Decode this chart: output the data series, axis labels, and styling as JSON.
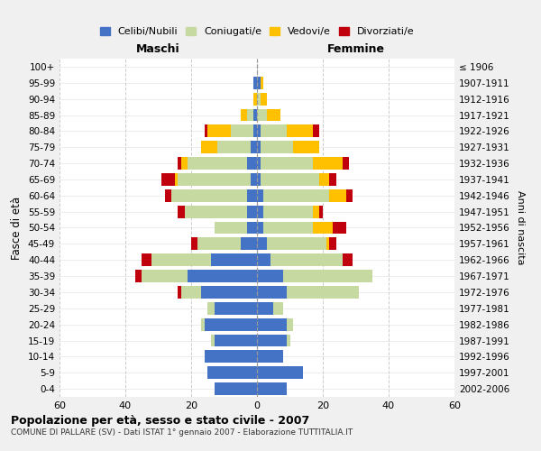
{
  "age_groups": [
    "0-4",
    "5-9",
    "10-14",
    "15-19",
    "20-24",
    "25-29",
    "30-34",
    "35-39",
    "40-44",
    "45-49",
    "50-54",
    "55-59",
    "60-64",
    "65-69",
    "70-74",
    "75-79",
    "80-84",
    "85-89",
    "90-94",
    "95-99",
    "100+"
  ],
  "birth_years": [
    "2002-2006",
    "1997-2001",
    "1992-1996",
    "1987-1991",
    "1982-1986",
    "1977-1981",
    "1972-1976",
    "1967-1971",
    "1962-1966",
    "1957-1961",
    "1952-1956",
    "1947-1951",
    "1942-1946",
    "1937-1941",
    "1932-1936",
    "1927-1931",
    "1922-1926",
    "1917-1921",
    "1912-1916",
    "1907-1911",
    "≤ 1906"
  ],
  "maschi": {
    "celibi": [
      13,
      15,
      16,
      13,
      16,
      13,
      17,
      21,
      14,
      5,
      3,
      3,
      3,
      2,
      3,
      2,
      1,
      1,
      0,
      1,
      0
    ],
    "coniugati": [
      0,
      0,
      0,
      1,
      1,
      2,
      6,
      14,
      18,
      13,
      10,
      19,
      23,
      22,
      18,
      10,
      7,
      2,
      0,
      0,
      0
    ],
    "vedovi": [
      0,
      0,
      0,
      0,
      0,
      0,
      0,
      0,
      0,
      0,
      0,
      0,
      0,
      1,
      2,
      5,
      7,
      2,
      1,
      0,
      0
    ],
    "divorziati": [
      0,
      0,
      0,
      0,
      0,
      0,
      1,
      2,
      3,
      2,
      0,
      2,
      2,
      4,
      1,
      0,
      1,
      0,
      0,
      0,
      0
    ]
  },
  "femmine": {
    "nubili": [
      9,
      14,
      8,
      9,
      9,
      5,
      9,
      8,
      4,
      3,
      2,
      2,
      2,
      1,
      1,
      1,
      1,
      0,
      0,
      1,
      0
    ],
    "coniugate": [
      0,
      0,
      0,
      1,
      2,
      3,
      22,
      27,
      22,
      18,
      15,
      15,
      20,
      18,
      16,
      10,
      8,
      3,
      1,
      0,
      0
    ],
    "vedove": [
      0,
      0,
      0,
      0,
      0,
      0,
      0,
      0,
      0,
      1,
      6,
      2,
      5,
      3,
      9,
      8,
      8,
      4,
      2,
      1,
      0
    ],
    "divorziate": [
      0,
      0,
      0,
      0,
      0,
      0,
      0,
      0,
      3,
      2,
      4,
      1,
      2,
      2,
      2,
      0,
      2,
      0,
      0,
      0,
      0
    ]
  },
  "color_celibi": "#4472c4",
  "color_coniugati": "#c5d9a0",
  "color_vedovi": "#ffc000",
  "color_divorziati": "#c0000c",
  "title": "Popolazione per età, sesso e stato civile - 2007",
  "subtitle": "COMUNE DI PALLARE (SV) - Dati ISTAT 1° gennaio 2007 - Elaborazione TUTTITALIA.IT",
  "xlabel_maschi": "Maschi",
  "xlabel_femmine": "Femmine",
  "ylabel": "Fasce di età",
  "ylabel_right": "Anni di nascita",
  "xlim": 60,
  "legend_labels": [
    "Celibi/Nubili",
    "Coniugati/e",
    "Vedovi/e",
    "Divorziati/e"
  ],
  "bg_color": "#f0f0f0",
  "plot_bg_color": "#ffffff"
}
